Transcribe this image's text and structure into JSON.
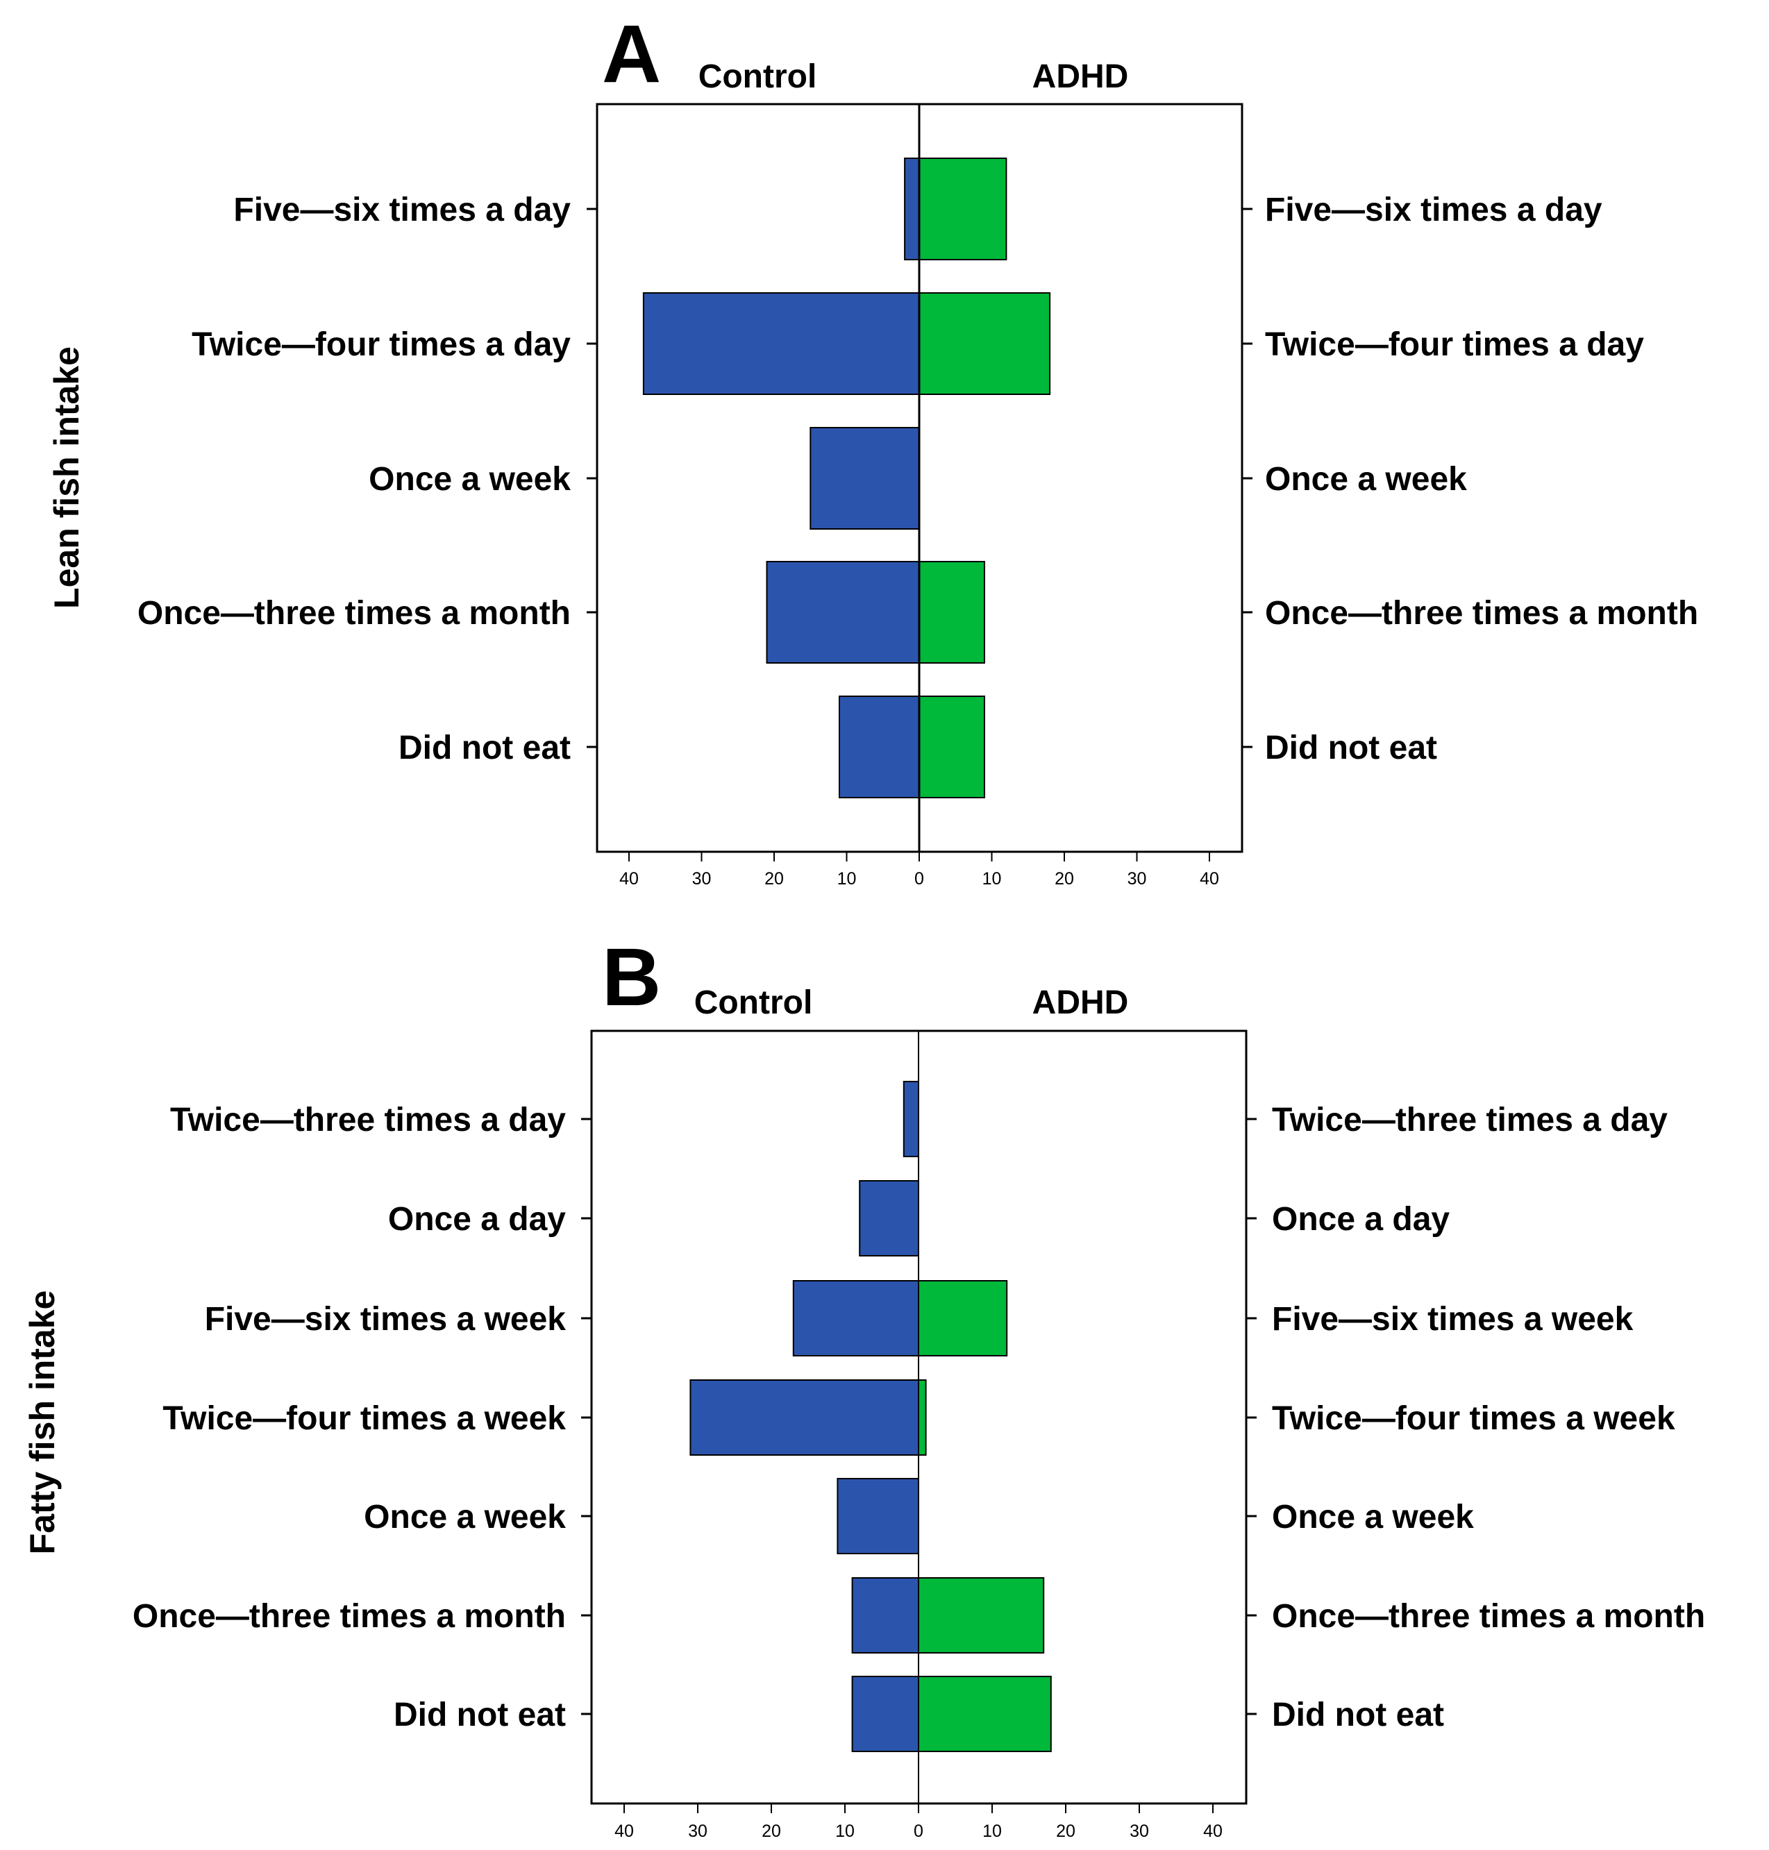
{
  "chart_data": [
    {
      "type": "bar",
      "orientation": "horizontal-population-pyramid",
      "panel": "A",
      "ylabel": "Lean fish intake",
      "left_group": "Control",
      "right_group": "ADHD",
      "categories": [
        "Five—six times a day",
        "Twice—four times a day",
        "Once a week",
        "Once—three times a month",
        "Did not eat"
      ],
      "series": [
        {
          "name": "Control",
          "color": "#2b55ad",
          "values": [
            2,
            38,
            15,
            21,
            11
          ]
        },
        {
          "name": "ADHD",
          "color": "#00b83a",
          "values": [
            12,
            18,
            0,
            9,
            9
          ]
        }
      ],
      "xlim": [
        -44,
        44
      ],
      "xticks": [
        -40,
        -30,
        -20,
        -10,
        0,
        10,
        20,
        30,
        40
      ],
      "xtick_labels": [
        "40",
        "30",
        "20",
        "10",
        "0",
        "10",
        "20",
        "30",
        "40"
      ],
      "grid": false
    },
    {
      "type": "bar",
      "orientation": "horizontal-population-pyramid",
      "panel": "B",
      "ylabel": "Fatty fish intake",
      "left_group": "Control",
      "right_group": "ADHD",
      "categories": [
        "Twice—three times a day",
        "Once a day",
        "Five—six times a week",
        "Twice—four times a week",
        "Once a week",
        "Once—three times a month",
        "Did not eat"
      ],
      "series": [
        {
          "name": "Control",
          "color": "#2b55ad",
          "values": [
            2,
            8,
            17,
            31,
            11,
            9,
            9
          ]
        },
        {
          "name": "ADHD",
          "color": "#00b83a",
          "values": [
            0,
            0,
            12,
            1,
            0,
            17,
            18
          ]
        }
      ],
      "xlim": [
        -44,
        44
      ],
      "xticks": [
        -40,
        -30,
        -20,
        -10,
        0,
        10,
        20,
        30,
        40
      ],
      "xtick_labels": [
        "40",
        "30",
        "20",
        "10",
        "0",
        "10",
        "20",
        "30",
        "40"
      ],
      "grid": false
    }
  ]
}
